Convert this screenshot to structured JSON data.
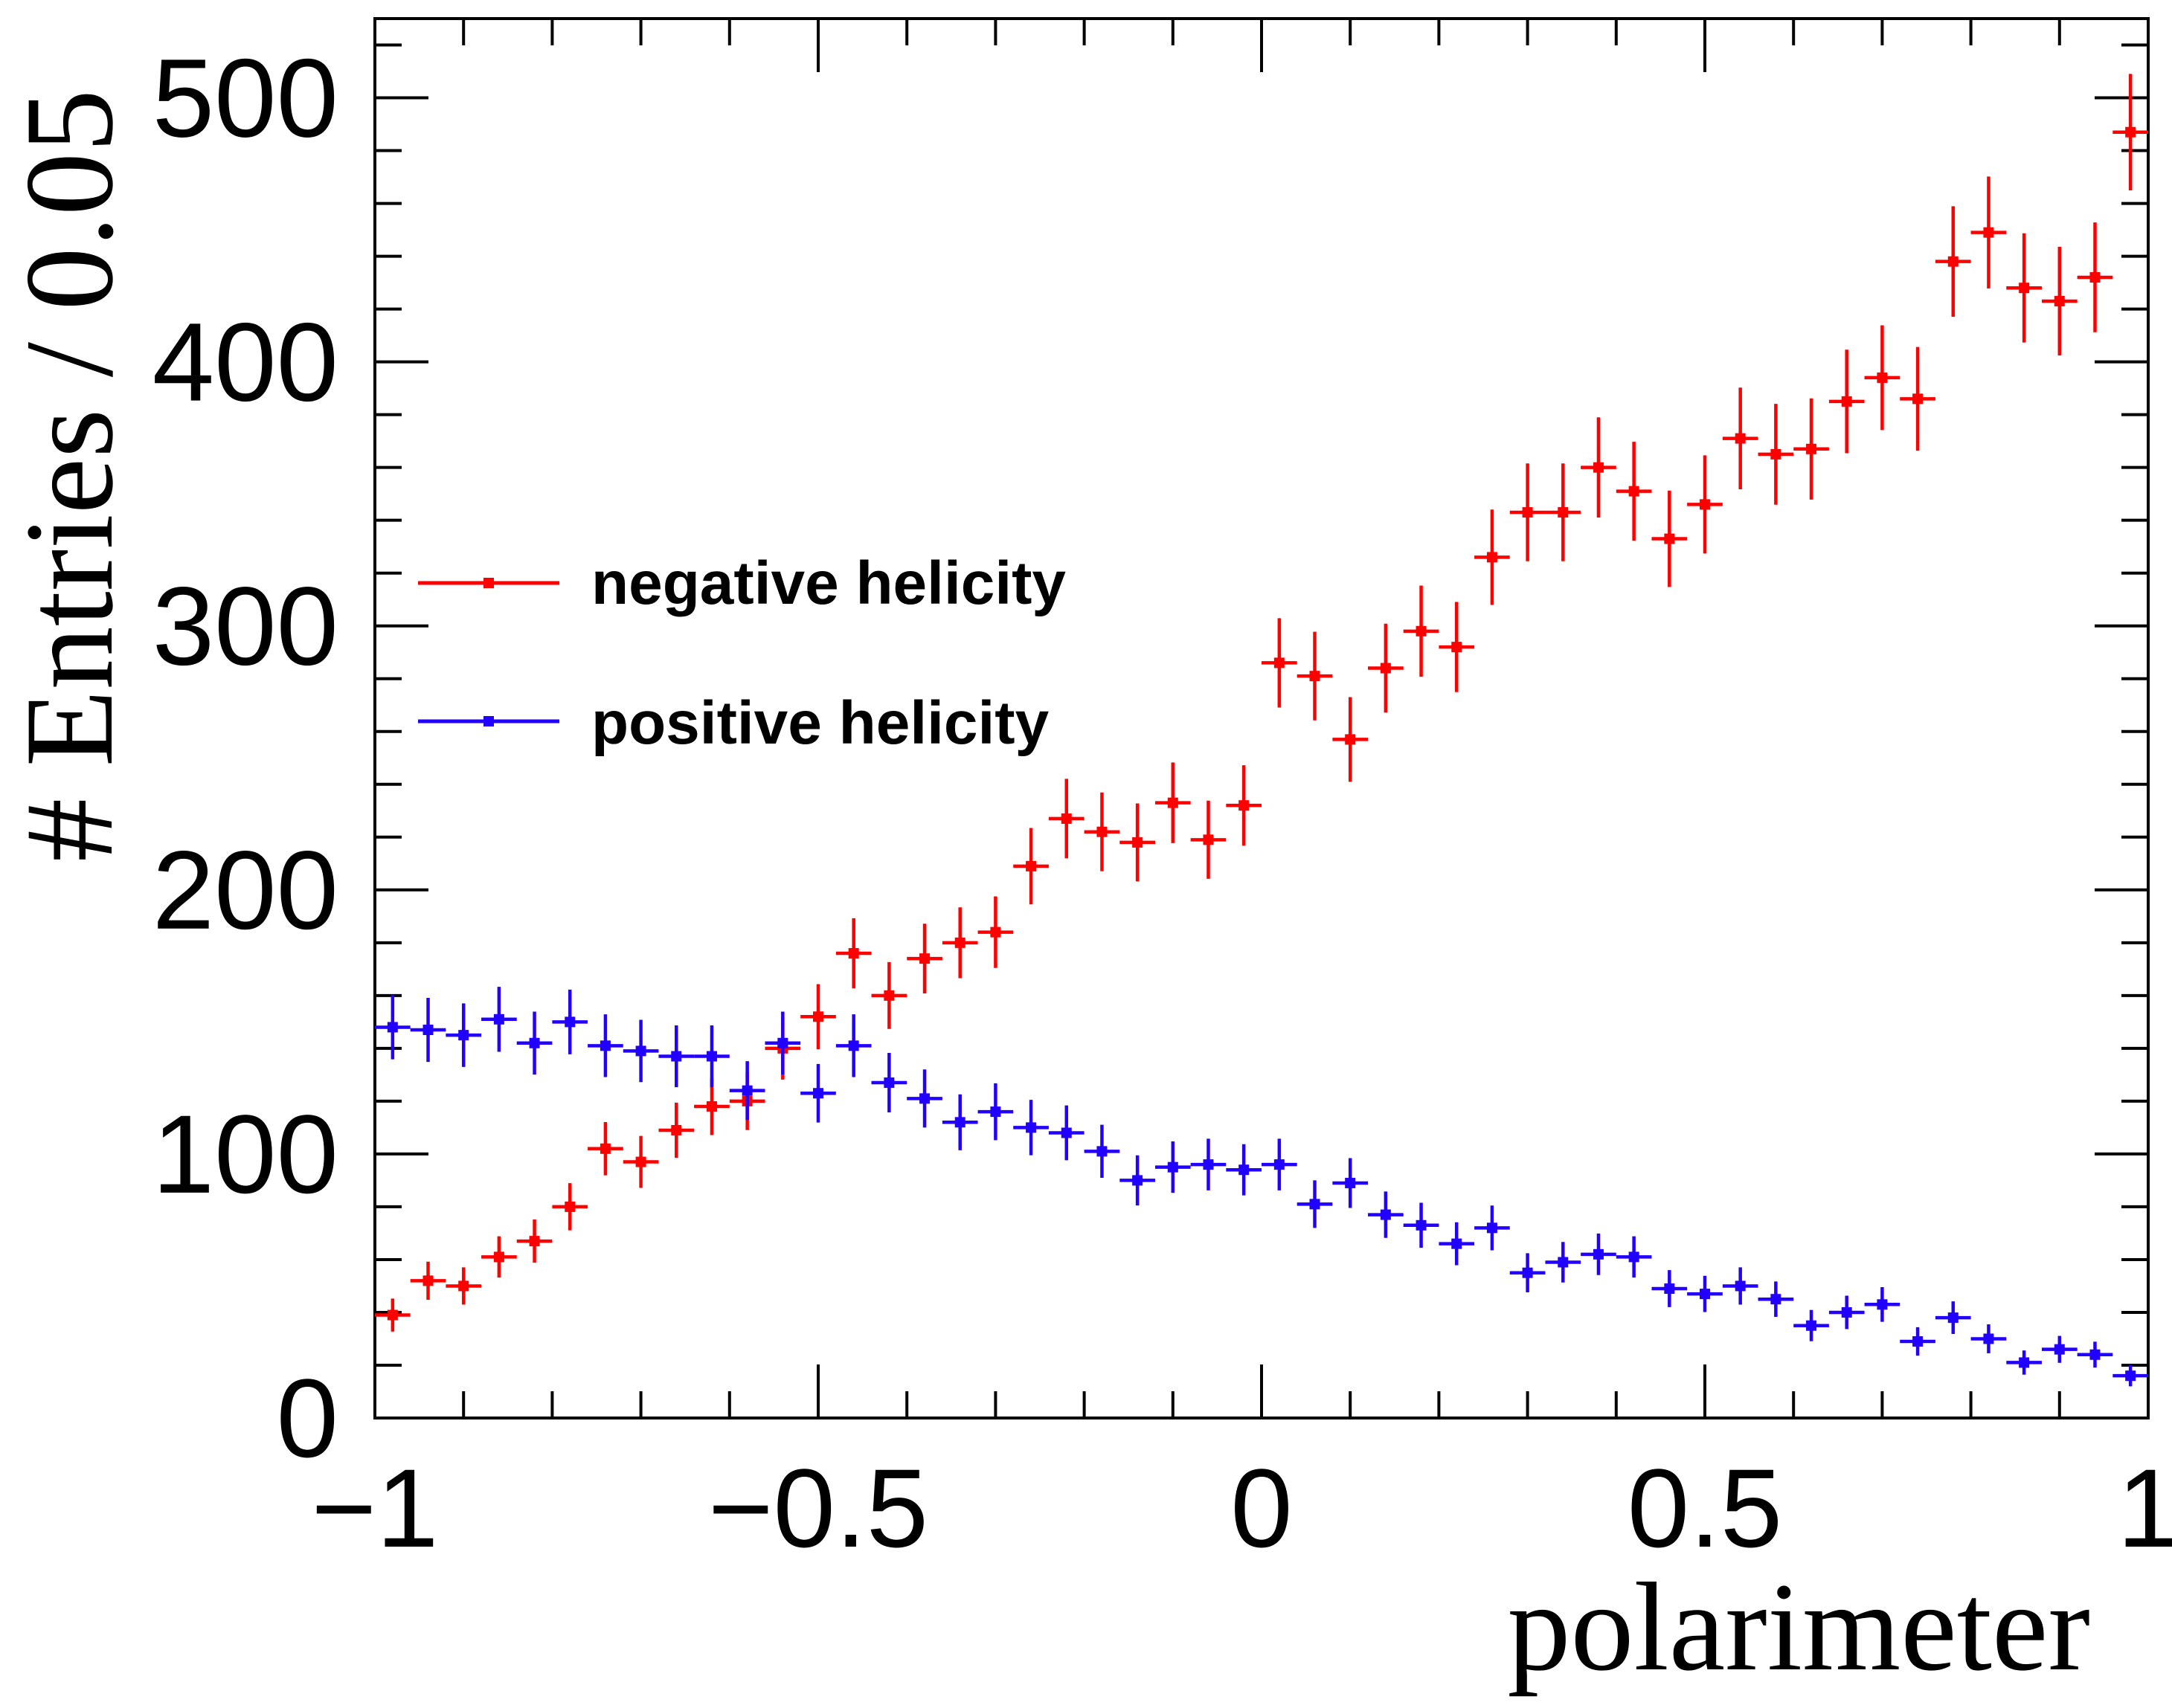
{
  "chart_data": {
    "type": "scatter",
    "xlabel": "polarimeter",
    "ylabel": "# Entries / 0.05",
    "xlim": [
      -1,
      1
    ],
    "ylim": [
      0,
      530
    ],
    "x_ticks": [
      -1,
      -0.5,
      0,
      0.5,
      1
    ],
    "x_tick_labels": [
      "−1",
      "−0.5",
      "0",
      "0.5",
      "1"
    ],
    "y_ticks": [
      0,
      100,
      200,
      300,
      400,
      500
    ],
    "y_tick_labels": [
      "0",
      "100",
      "200",
      "300",
      "400",
      "500"
    ],
    "bin_width": 0.04,
    "legend_position": "middle-left",
    "series": [
      {
        "name": "negative helicity",
        "color": "#ff0000",
        "x": [
          -0.98,
          -0.94,
          -0.9,
          -0.86,
          -0.82,
          -0.78,
          -0.74,
          -0.7,
          -0.66,
          -0.62,
          -0.58,
          -0.54,
          -0.5,
          -0.46,
          -0.42,
          -0.38,
          -0.34,
          -0.3,
          -0.26,
          -0.22,
          -0.18,
          -0.14,
          -0.1,
          -0.06,
          -0.02,
          0.02,
          0.06,
          0.1,
          0.14,
          0.18,
          0.22,
          0.26,
          0.3,
          0.34,
          0.38,
          0.42,
          0.46,
          0.5,
          0.54,
          0.58,
          0.62,
          0.66,
          0.7,
          0.74,
          0.78,
          0.82,
          0.86,
          0.9,
          0.94,
          0.98
        ],
        "y": [
          39,
          52,
          50,
          61,
          67,
          80,
          102,
          97,
          109,
          118,
          120,
          140,
          152,
          176,
          160,
          174,
          180,
          184,
          209,
          227,
          222,
          218,
          233,
          219,
          232,
          286,
          281,
          257,
          284,
          298,
          292,
          326,
          343,
          343,
          360,
          351,
          333,
          346,
          371,
          365,
          367,
          385,
          394,
          386,
          438,
          449,
          428,
          423,
          432,
          487
        ]
      },
      {
        "name": "positive helicity",
        "color": "#2200ff",
        "x": [
          -0.98,
          -0.94,
          -0.9,
          -0.86,
          -0.82,
          -0.78,
          -0.74,
          -0.7,
          -0.66,
          -0.62,
          -0.58,
          -0.54,
          -0.5,
          -0.46,
          -0.42,
          -0.38,
          -0.34,
          -0.3,
          -0.26,
          -0.22,
          -0.18,
          -0.14,
          -0.1,
          -0.06,
          -0.02,
          0.02,
          0.06,
          0.1,
          0.14,
          0.18,
          0.22,
          0.26,
          0.3,
          0.34,
          0.38,
          0.42,
          0.46,
          0.5,
          0.54,
          0.58,
          0.62,
          0.66,
          0.7,
          0.74,
          0.78,
          0.82,
          0.86,
          0.9,
          0.94,
          0.98
        ],
        "y": [
          148,
          147,
          145,
          151,
          142,
          150,
          141,
          139,
          137,
          137,
          124,
          142,
          123,
          141,
          127,
          121,
          112,
          116,
          110,
          108,
          101,
          90,
          95,
          96,
          94,
          96,
          81,
          89,
          77,
          73,
          66,
          72,
          55,
          59,
          62,
          61,
          49,
          47,
          50,
          45,
          35,
          40,
          43,
          29,
          38,
          30,
          21,
          26,
          24,
          16
        ]
      }
    ]
  }
}
